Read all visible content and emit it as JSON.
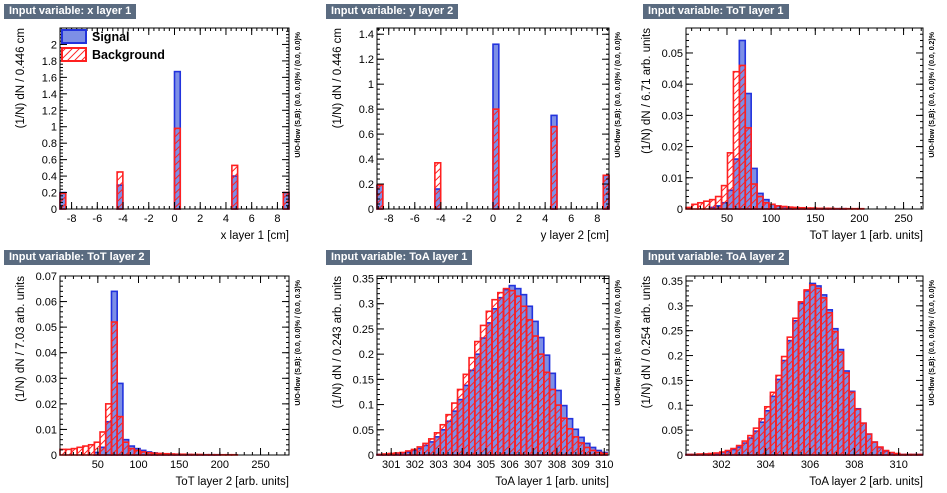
{
  "colors": {
    "signal": "#2233dd",
    "signal_fill": "#7d8fe6",
    "background": "#ff2020",
    "title_bg": "#5a6b80"
  },
  "legend": {
    "signal": "Signal",
    "background": "Background"
  },
  "chart_data": [
    {
      "type": "bar",
      "title": "Input variable: x layer 1",
      "xlabel": "x layer 1  [cm]",
      "ylabel": "(1/N) dN  /  0.446 cm",
      "side_label": "U/O-flow (S,B): (0.0, 0.0)% / (0.0, 0.0)%",
      "xlim": [
        -8.9,
        8.9
      ],
      "ylim": [
        0,
        2.2
      ],
      "xticks": [
        -8,
        -6,
        -4,
        -2,
        0,
        2,
        4,
        6,
        8
      ],
      "xtick_labels": [
        "-8",
        "-6",
        "-4",
        "-2",
        "0",
        "2",
        "4",
        "6",
        "8"
      ],
      "yticks": [
        0,
        0.2,
        0.4,
        0.6,
        0.8,
        1,
        1.2,
        1.4,
        1.6,
        1.8,
        2
      ],
      "ytick_labels": [
        "0",
        "0.2",
        "0.4",
        "0.6",
        "0.8",
        "1",
        "1.2",
        "1.4",
        "1.6",
        "1.8",
        "2"
      ],
      "bin_width": 0.446,
      "series": [
        {
          "name": "Signal",
          "bins": [
            [
              -8.9,
              0.2
            ],
            [
              -4.46,
              0.29
            ],
            [
              0,
              1.67
            ],
            [
              4.46,
              0.4
            ],
            [
              8.46,
              0.2
            ]
          ]
        },
        {
          "name": "Background",
          "bins": [
            [
              -8.9,
              0.19
            ],
            [
              -4.46,
              0.45
            ],
            [
              0,
              0.98
            ],
            [
              4.46,
              0.53
            ],
            [
              8.46,
              0.2
            ]
          ]
        }
      ]
    },
    {
      "type": "bar",
      "title": "Input variable: y layer 2",
      "xlabel": "y layer 2  [cm]",
      "ylabel": "(1/N) dN  /  0.446 cm",
      "side_label": "U/O-flow (S,B): (0.0, 0.0)% / (0.0, 0.0)%",
      "xlim": [
        -8.9,
        8.9
      ],
      "ylim": [
        0,
        1.45
      ],
      "xticks": [
        -8,
        -6,
        -4,
        -2,
        0,
        2,
        4,
        6,
        8
      ],
      "xtick_labels": [
        "-8",
        "-6",
        "-4",
        "-2",
        "0",
        "2",
        "4",
        "6",
        "8"
      ],
      "yticks": [
        0,
        0.2,
        0.4,
        0.6,
        0.8,
        1,
        1.2,
        1.4
      ],
      "ytick_labels": [
        "0",
        "0.2",
        "0.4",
        "0.6",
        "0.8",
        "1",
        "1.2",
        "1.4"
      ],
      "bin_width": 0.446,
      "series": [
        {
          "name": "Signal",
          "bins": [
            [
              -8.9,
              0.19
            ],
            [
              -4.46,
              0.16
            ],
            [
              0,
              1.32
            ],
            [
              4.46,
              0.75
            ],
            [
              8.46,
              0.27
            ]
          ]
        },
        {
          "name": "Background",
          "bins": [
            [
              -8.9,
              0.19
            ],
            [
              -4.46,
              0.37
            ],
            [
              0,
              0.8
            ],
            [
              4.46,
              0.66
            ],
            [
              8.46,
              0.27
            ]
          ]
        }
      ]
    },
    {
      "type": "histogram",
      "title": "Input variable: ToT layer 1",
      "xlabel": "ToT layer 1  [arb. units]",
      "ylabel": "(1/N) dN  /  6.71 arb. units",
      "side_label": "U/O-flow (S,B): (0.0, 0.0)% / (0.0, 0.2)%",
      "xlim": [
        3.6,
        272
      ],
      "ylim": [
        0,
        0.058
      ],
      "xticks": [
        50,
        100,
        150,
        200,
        250
      ],
      "xtick_labels": [
        "50",
        "100",
        "150",
        "200",
        "250"
      ],
      "yticks": [
        0,
        0.01,
        0.02,
        0.03,
        0.04,
        0.05
      ],
      "ytick_labels": [
        "0",
        "0.01",
        "0.02",
        "0.03",
        "0.04",
        "0.05"
      ],
      "x0": 3.6,
      "bin_width": 6.71,
      "series": [
        {
          "name": "Signal",
          "values": [
            0,
            0,
            0,
            0,
            0.0005,
            0.001,
            0.002,
            0.006,
            0.016,
            0.054,
            0.037,
            0.013,
            0.005,
            0.003,
            0.0015,
            0.001,
            0.0007,
            0.0005,
            0.0004,
            0.0003,
            0.0002,
            0.0002,
            0.0001,
            0.0001,
            0.0001,
            0.0001,
            0.0001,
            0,
            0,
            0,
            0,
            0,
            0,
            0,
            0,
            0,
            0,
            0,
            0,
            0
          ]
        },
        {
          "name": "Background",
          "values": [
            0.0005,
            0.0015,
            0.002,
            0.0025,
            0.003,
            0.004,
            0.0075,
            0.018,
            0.044,
            0.046,
            0.026,
            0.008,
            0.004,
            0.002,
            0.0015,
            0.001,
            0.0008,
            0.0006,
            0.0005,
            0.0004,
            0.0003,
            0.0003,
            0.0002,
            0.0002,
            0.0002,
            0.0001,
            0.0001,
            0.0001,
            0.0001,
            0.0001,
            0,
            0,
            0,
            0,
            0,
            0,
            0,
            0,
            0,
            0
          ]
        }
      ]
    },
    {
      "type": "histogram",
      "title": "Input variable: ToT layer 2",
      "xlabel": "ToT layer 2  [arb. units]",
      "ylabel": "(1/N) dN  /  7.03 arb. units",
      "side_label": "U/O-flow (S,B): (0.0, 0.0)% / (0.0, 0.3)%",
      "xlim": [
        3.5,
        285
      ],
      "ylim": [
        0,
        0.07
      ],
      "xticks": [
        50,
        100,
        150,
        200,
        250
      ],
      "xtick_labels": [
        "50",
        "100",
        "150",
        "200",
        "250"
      ],
      "yticks": [
        0,
        0.01,
        0.02,
        0.03,
        0.04,
        0.05,
        0.06,
        0.07
      ],
      "ytick_labels": [
        "0",
        "0.01",
        "0.02",
        "0.03",
        "0.04",
        "0.05",
        "0.06",
        "0.07"
      ],
      "x0": 3.5,
      "bin_width": 7.03,
      "series": [
        {
          "name": "Signal",
          "values": [
            0,
            0,
            0,
            0,
            0,
            0,
            0.001,
            0.003,
            0.013,
            0.064,
            0.028,
            0.006,
            0.0035,
            0.0025,
            0.0018,
            0.0012,
            0.0008,
            0.0005,
            0.0004,
            0.0003,
            0.0003,
            0.0002,
            0.0002,
            0.0001,
            0.0001,
            0.0001,
            0.0001,
            0.0001,
            0,
            0,
            0,
            0,
            0,
            0,
            0,
            0,
            0,
            0,
            0,
            0
          ]
        },
        {
          "name": "Background",
          "values": [
            0.0022,
            0.0022,
            0.0025,
            0.003,
            0.0035,
            0.004,
            0.005,
            0.009,
            0.02,
            0.052,
            0.015,
            0.005,
            0.0025,
            0.0018,
            0.0012,
            0.0009,
            0.0007,
            0.0006,
            0.0005,
            0.0004,
            0.0003,
            0.0003,
            0.0002,
            0.0002,
            0.0002,
            0.0001,
            0.0001,
            0.0001,
            0.0001,
            0.0001,
            0.0001,
            0,
            0,
            0,
            0,
            0,
            0,
            0,
            0,
            0
          ]
        }
      ]
    },
    {
      "type": "histogram",
      "title": "Input variable: ToA layer 1",
      "xlabel": "ToA layer 1  [arb. units]",
      "ylabel": "(1/N) dN  /  0.243 arb. units",
      "side_label": "U/O-flow (S,B): (0.0, 0.0)% / (0.0, 0.0)%",
      "xlim": [
        300.4,
        310.2
      ],
      "ylim": [
        0,
        0.355
      ],
      "xticks": [
        301,
        302,
        303,
        304,
        305,
        306,
        307,
        308,
        309,
        310
      ],
      "xtick_labels": [
        "301",
        "302",
        "303",
        "304",
        "305",
        "306",
        "307",
        "308",
        "309",
        "310"
      ],
      "yticks": [
        0,
        0.05,
        0.1,
        0.15,
        0.2,
        0.25,
        0.3,
        0.35
      ],
      "ytick_labels": [
        "0",
        "0.05",
        "0.1",
        "0.15",
        "0.2",
        "0.25",
        "0.3",
        "0.35"
      ],
      "x0": 300.4,
      "bin_width": 0.243,
      "series": [
        {
          "name": "Signal",
          "values": [
            0.001,
            0.001,
            0.002,
            0.003,
            0.004,
            0.006,
            0.009,
            0.013,
            0.019,
            0.026,
            0.036,
            0.05,
            0.067,
            0.087,
            0.11,
            0.138,
            0.168,
            0.2,
            0.232,
            0.262,
            0.29,
            0.312,
            0.328,
            0.336,
            0.33,
            0.318,
            0.295,
            0.265,
            0.233,
            0.198,
            0.162,
            0.128,
            0.098,
            0.072,
            0.051,
            0.035,
            0.023,
            0.015,
            0.009,
            0.005
          ]
        },
        {
          "name": "Background",
          "values": [
            0.001,
            0.002,
            0.003,
            0.004,
            0.005,
            0.008,
            0.011,
            0.016,
            0.023,
            0.032,
            0.044,
            0.06,
            0.08,
            0.103,
            0.13,
            0.16,
            0.193,
            0.225,
            0.257,
            0.285,
            0.308,
            0.322,
            0.33,
            0.326,
            0.315,
            0.295,
            0.268,
            0.236,
            0.2,
            0.164,
            0.13,
            0.099,
            0.073,
            0.052,
            0.036,
            0.024,
            0.015,
            0.009,
            0.005,
            0.003
          ]
        }
      ]
    },
    {
      "type": "histogram",
      "title": "Input variable: ToA layer 2",
      "xlabel": "ToA layer 2  [arb. units]",
      "ylabel": "(1/N) dN  /  0.254 arb. units",
      "side_label": "U/O-flow (S,B): (0.0, 0.0)% / (0.0, 0.0)%",
      "xlim": [
        300.4,
        311.1
      ],
      "ylim": [
        0,
        0.36
      ],
      "xticks": [
        302,
        304,
        306,
        308,
        310
      ],
      "xtick_labels": [
        "302",
        "304",
        "306",
        "308",
        "310"
      ],
      "yticks": [
        0,
        0.05,
        0.1,
        0.15,
        0.2,
        0.25,
        0.3,
        0.35
      ],
      "ytick_labels": [
        "0",
        "0.05",
        "0.1",
        "0.15",
        "0.2",
        "0.25",
        "0.3",
        "0.35"
      ],
      "x0": 300.4,
      "bin_width": 0.254,
      "series": [
        {
          "name": "Signal",
          "values": [
            0.001,
            0.001,
            0.001,
            0.002,
            0.002,
            0.003,
            0.005,
            0.007,
            0.011,
            0.016,
            0.024,
            0.034,
            0.048,
            0.066,
            0.089,
            0.118,
            0.152,
            0.19,
            0.23,
            0.27,
            0.305,
            0.33,
            0.345,
            0.34,
            0.322,
            0.292,
            0.254,
            0.212,
            0.169,
            0.128,
            0.093,
            0.064,
            0.042,
            0.026,
            0.015,
            0.008,
            0.004,
            0.002,
            0.001,
            0.001,
            0.001,
            0.001
          ]
        },
        {
          "name": "Background",
          "values": [
            0.001,
            0.001,
            0.002,
            0.002,
            0.003,
            0.004,
            0.006,
            0.009,
            0.013,
            0.019,
            0.028,
            0.039,
            0.054,
            0.073,
            0.097,
            0.126,
            0.16,
            0.198,
            0.237,
            0.275,
            0.308,
            0.332,
            0.342,
            0.335,
            0.316,
            0.286,
            0.248,
            0.207,
            0.165,
            0.126,
            0.092,
            0.064,
            0.042,
            0.026,
            0.016,
            0.009,
            0.005,
            0.003,
            0.001,
            0.001,
            0.001,
            0.001
          ]
        }
      ]
    }
  ]
}
